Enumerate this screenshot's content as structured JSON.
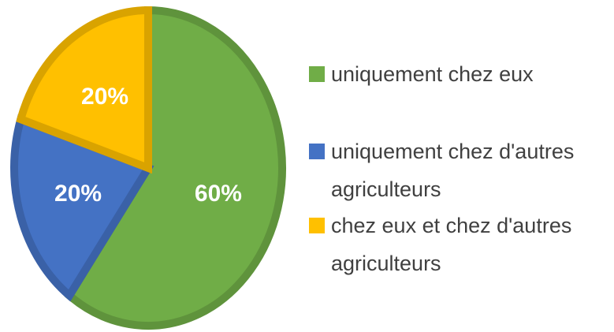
{
  "chart_data": {
    "type": "pie",
    "categories": [
      "uniquement chez eux",
      "uniquement chez d'autres agriculteurs",
      "chez eux et chez d'autres agriculteurs"
    ],
    "values": [
      60,
      20,
      20
    ],
    "value_labels": [
      "60%",
      "20%",
      "20%"
    ],
    "colors": [
      "#70ad47",
      "#4472c4",
      "#ffc000"
    ],
    "legend": "right"
  }
}
